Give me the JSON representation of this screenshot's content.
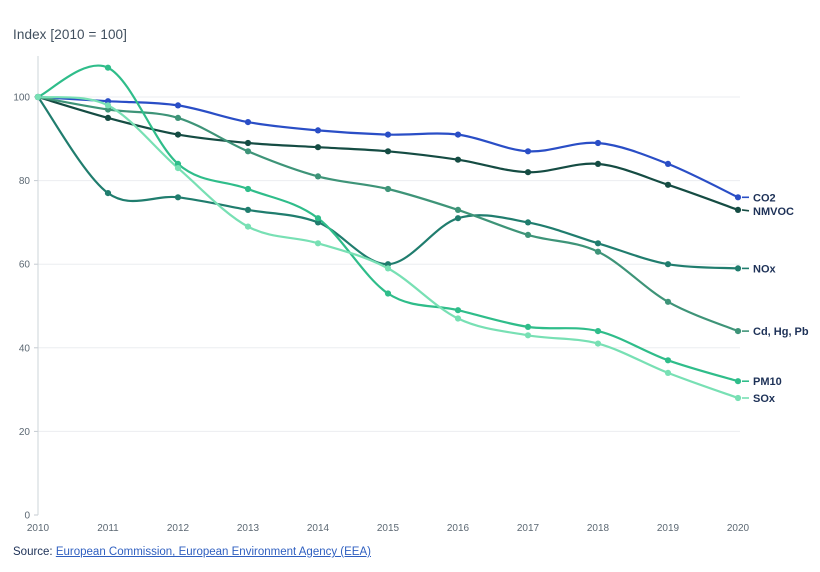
{
  "page": {
    "title": "Index [2010 = 100]",
    "source_prefix": "Source:",
    "source_link": "European Commission, European Environment Agency (EEA)"
  },
  "chart_data": {
    "type": "line",
    "title": "Index [2010 = 100]",
    "xlabel": "",
    "ylabel": "Index [2010 = 100]",
    "x": [
      2010,
      2011,
      2012,
      2013,
      2014,
      2015,
      2016,
      2017,
      2018,
      2019,
      2020
    ],
    "y_ticks": [
      0,
      20,
      40,
      60,
      80,
      100
    ],
    "ylim": [
      0,
      110
    ],
    "grid": "horizontal-only",
    "legend_position": "right-end-labels",
    "series": [
      {
        "name": "CO2",
        "color": "#2a4ec6",
        "values": [
          100,
          99,
          98,
          94,
          92,
          91,
          91,
          87,
          89,
          84,
          76
        ]
      },
      {
        "name": "NMVOC",
        "color": "#154c43",
        "values": [
          100,
          95,
          91,
          89,
          88,
          87,
          85,
          82,
          84,
          79,
          73
        ]
      },
      {
        "name": "NOx",
        "color": "#207d6e",
        "values": [
          100,
          77,
          76,
          73,
          70,
          60,
          71,
          70,
          65,
          60,
          59
        ]
      },
      {
        "name": "Cd, Hg, Pb",
        "color": "#3e9478",
        "values": [
          100,
          97,
          95,
          87,
          81,
          78,
          73,
          67,
          63,
          51,
          44
        ]
      },
      {
        "name": "PM10",
        "color": "#2fbd8a",
        "values": [
          100,
          107,
          84,
          78,
          71,
          53,
          49,
          45,
          44,
          37,
          32
        ]
      },
      {
        "name": "SOx",
        "color": "#78e0b4",
        "values": [
          100,
          98,
          83,
          69,
          65,
          59,
          47,
          43,
          41,
          34,
          28
        ]
      }
    ],
    "style_colors": {
      "grid": "#ebedf0",
      "axis": "#ced4d9",
      "tick": "#c4cbd1",
      "tick_text": "#5c6873",
      "series_label_text": "#1d3157",
      "link": "#2f5fc0",
      "background": "#ffffff"
    }
  }
}
